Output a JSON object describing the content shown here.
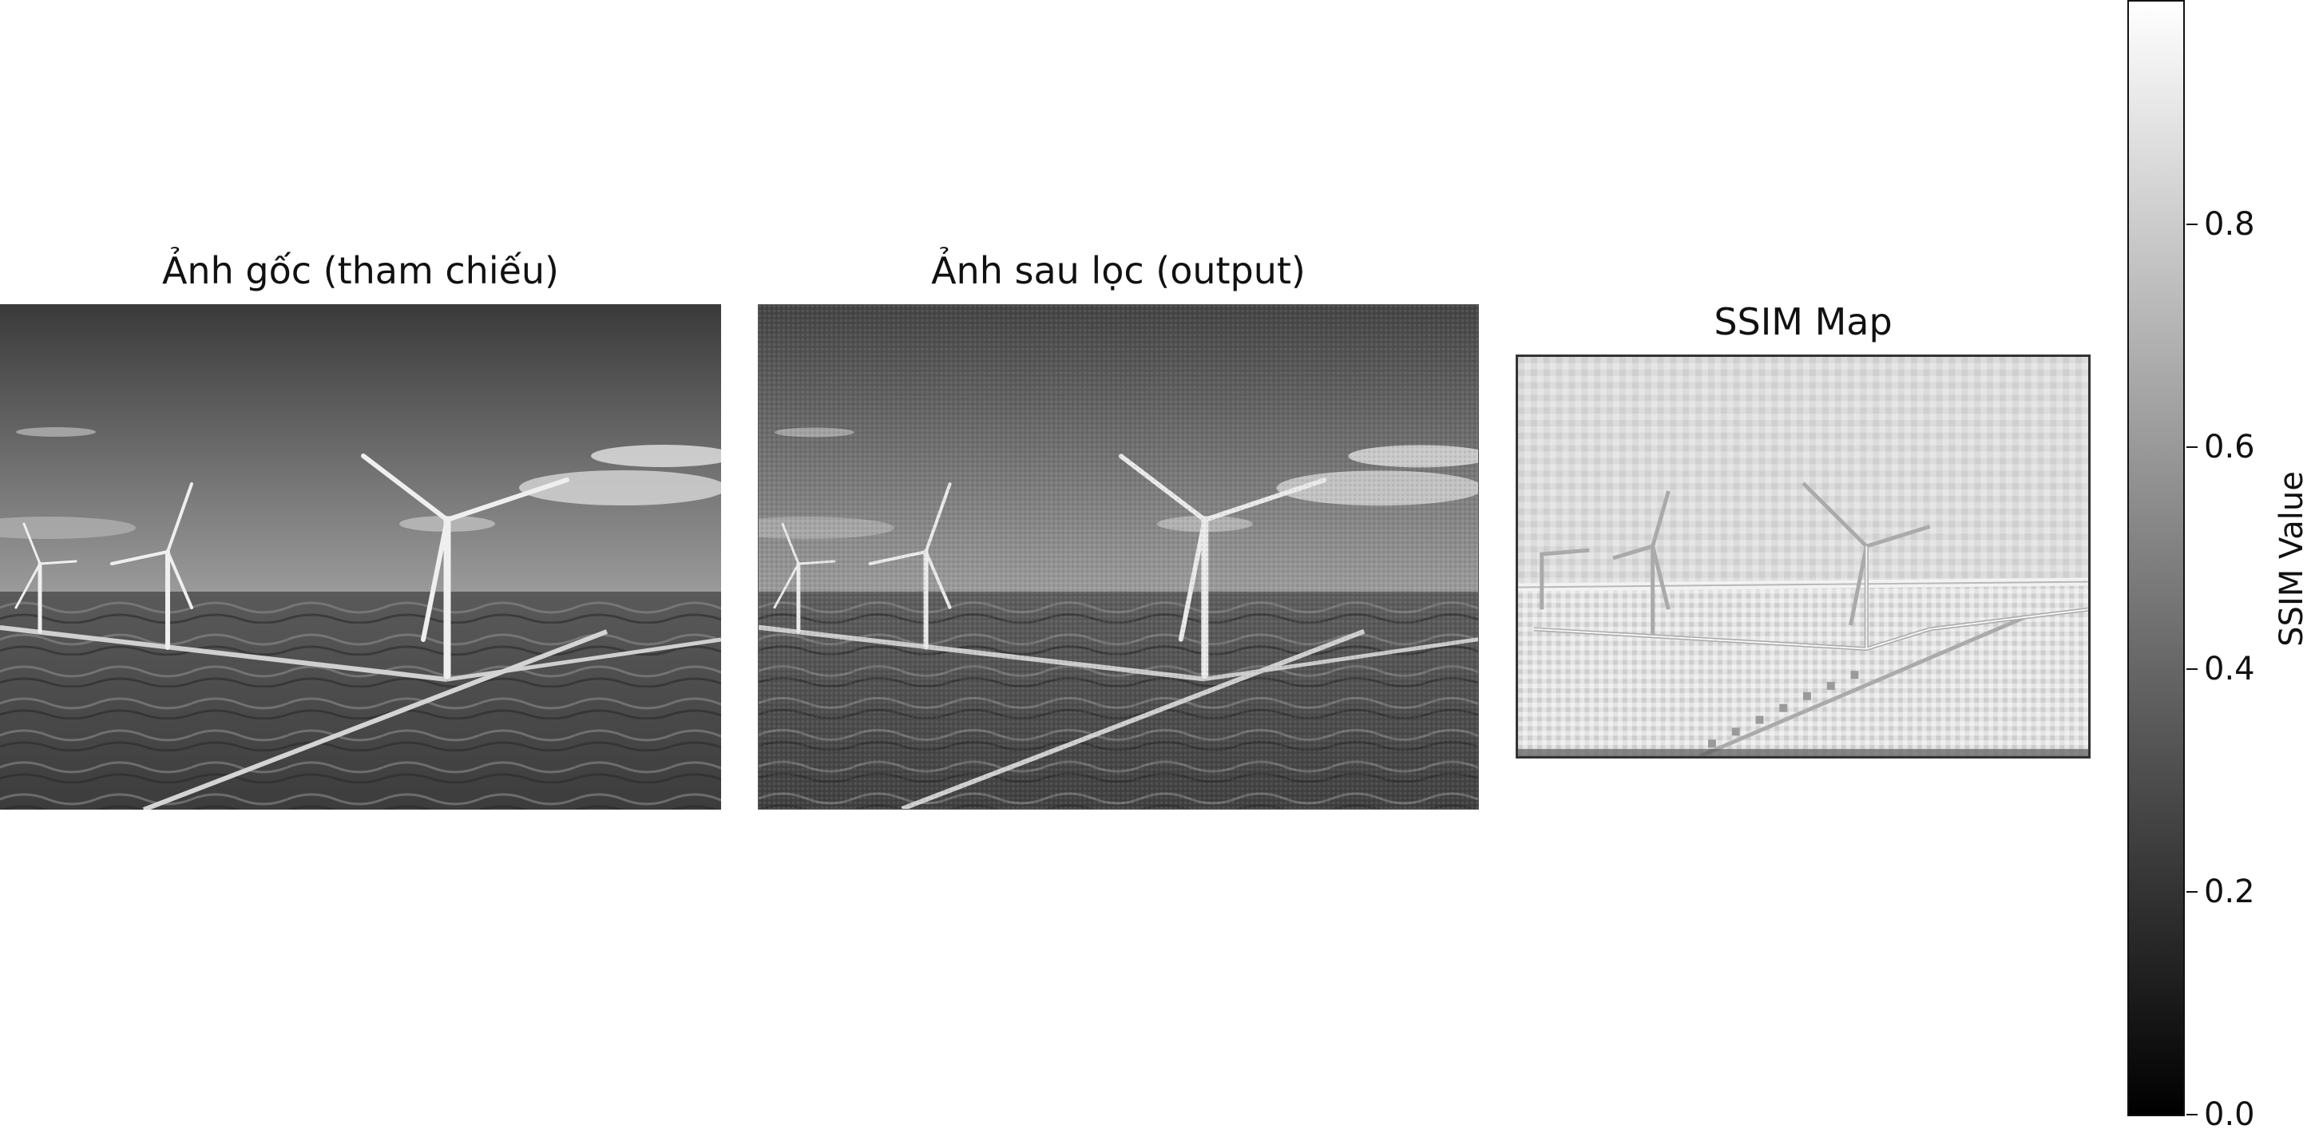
{
  "panels": {
    "original": {
      "title": "Ảnh gốc (tham chiếu)"
    },
    "filtered": {
      "title": "Ảnh sau lọc (output)"
    },
    "ssim": {
      "title": "SSIM Map"
    }
  },
  "colorbar": {
    "label": "SSIM Value",
    "colormap": "gray",
    "range": [
      0.0,
      1.0
    ],
    "ticks": [
      "0.0",
      "0.2",
      "0.4",
      "0.6",
      "0.8"
    ]
  }
}
